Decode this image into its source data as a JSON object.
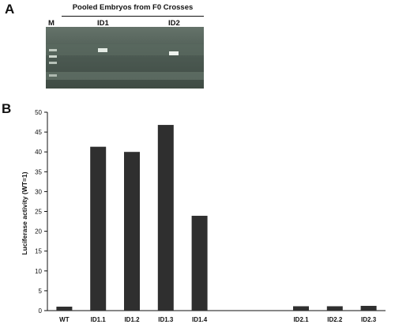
{
  "panel_a": {
    "letter": "A",
    "gel_title": "Pooled Embryos from F0 Crosses",
    "lane_labels": {
      "marker": "M",
      "id1": "ID1",
      "id2": "ID2"
    }
  },
  "panel_b": {
    "letter": "B"
  },
  "colors": {
    "bar": "#2f2f2f",
    "gel": "#4e5c54",
    "band": "#dfe6df"
  },
  "chart_data": {
    "type": "bar",
    "categories": [
      "WT",
      "ID1.1",
      "ID1.2",
      "ID1.3",
      "ID1.4",
      "",
      "",
      "ID2.1",
      "ID2.2",
      "ID2.3"
    ],
    "values": [
      1,
      41.3,
      40.0,
      46.8,
      23.9,
      null,
      null,
      1.1,
      1.1,
      1.2
    ],
    "xlabel": "",
    "ylabel": "Luciferase activity (WT=1)",
    "ylim": [
      0,
      50
    ],
    "yticks": [
      0,
      5,
      10,
      15,
      20,
      25,
      30,
      35,
      40,
      45,
      50
    ],
    "grid": false,
    "legend": "none"
  }
}
